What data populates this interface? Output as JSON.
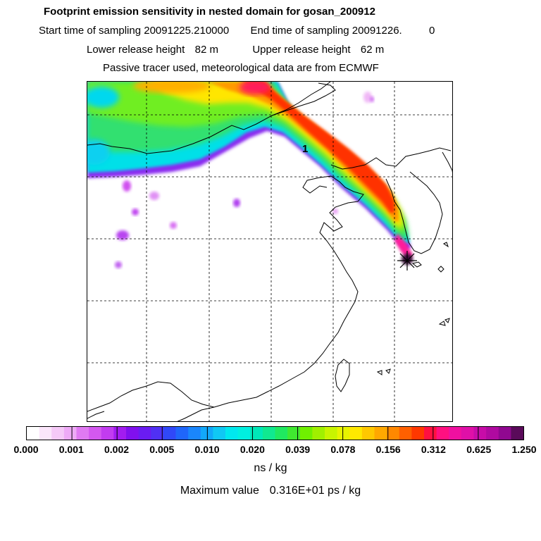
{
  "header": {
    "title": "Footprint emission sensitivity in nested domain for gosan_200912",
    "start_label": "Start time of sampling",
    "start_value": "20091225.210000",
    "end_label": "End time of sampling",
    "end_value": "20091226.",
    "end_extra": "0",
    "lower_label": "Lower release height",
    "lower_value": "82 m",
    "upper_label": "Upper release height",
    "upper_value": "62 m",
    "note": "Passive tracer used, meteorological data are from ECMWF"
  },
  "map": {
    "plume_label": "1",
    "receptor_marker": "star",
    "plume_colors": {
      "outer_purple": "#9a1cf0",
      "cyan": "#00e0e8",
      "green": "#38e07a",
      "yellow_green": "#b8f000",
      "yellow": "#ffee00",
      "orange": "#ff9a00",
      "red": "#ff2a00",
      "magenta": "#ff1a9a",
      "dark": "#3a0a3a"
    }
  },
  "colorbar": {
    "colors": [
      "#ffffff",
      "#fbe6fb",
      "#f5c9f7",
      "#eeaaf6",
      "#e07af2",
      "#d458f0",
      "#c23cf0",
      "#a21cf0",
      "#8010ee",
      "#6a1cf2",
      "#5030f4",
      "#3048f8",
      "#1f66fa",
      "#1a86fc",
      "#12a8fa",
      "#10c8f4",
      "#00e8ee",
      "#00f0e0",
      "#00e8b8",
      "#10e890",
      "#20e860",
      "#40e830",
      "#70f000",
      "#a0f000",
      "#c8f400",
      "#e8f400",
      "#ffe800",
      "#ffc800",
      "#ffa800",
      "#ff8800",
      "#ff6000",
      "#ff3800",
      "#ff1040",
      "#ff1080",
      "#f010a0",
      "#e010a8",
      "#c80ca8",
      "#b00aa0",
      "#900890",
      "#5a0a5a"
    ],
    "group_boundaries": [
      0,
      2,
      4,
      6,
      8,
      10,
      12,
      14,
      16,
      18,
      20,
      22,
      24,
      26
    ],
    "labels": [
      "0.000",
      "0.001",
      "0.002",
      "0.005",
      "0.010",
      "0.020",
      "0.039",
      "0.078",
      "0.156",
      "0.312",
      "0.625",
      "1.250"
    ],
    "unit": "ns / kg"
  },
  "footer": {
    "max_label": "Maximum value",
    "max_value": "0.316E+01 ps / kg"
  }
}
